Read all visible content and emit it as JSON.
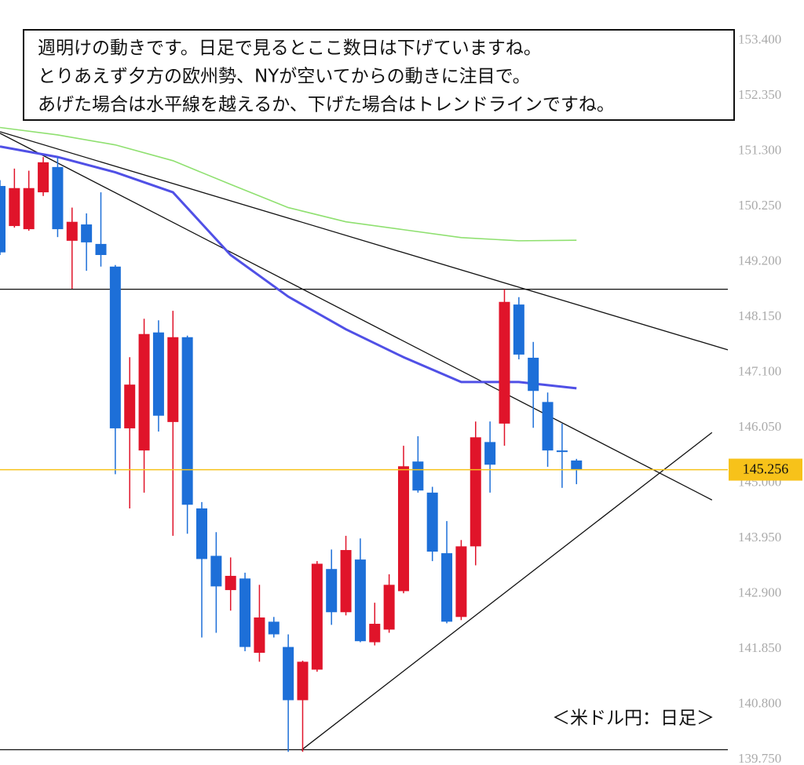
{
  "chart_data": {
    "type": "candlestick",
    "annotation": [
      "週明けの動きです。日足で見るとここ数日は下げていますね。",
      "とりあえず夕方の欧州勢、NYが空いてからの動きに注目で。",
      "あげた場合は水平線を越えるか、下げた場合はトレンドラインですね。"
    ],
    "caption": "＜米ドル円：日足＞",
    "xlim": [
      0,
      50.5
    ],
    "ylim": [
      139.65,
      154.17
    ],
    "yticks": [
      {
        "value": 153.4,
        "label": "153.400"
      },
      {
        "value": 152.35,
        "label": "152.350"
      },
      {
        "value": 151.3,
        "label": "151.300"
      },
      {
        "value": 150.25,
        "label": "150.250"
      },
      {
        "value": 149.2,
        "label": "149.200"
      },
      {
        "value": 148.15,
        "label": "148.150"
      },
      {
        "value": 147.1,
        "label": "147.100"
      },
      {
        "value": 146.05,
        "label": "146.050"
      },
      {
        "value": 145.0,
        "label": "145.000"
      },
      {
        "value": 143.95,
        "label": "143.950"
      },
      {
        "value": 142.9,
        "label": "142.900"
      },
      {
        "value": 141.85,
        "label": "141.850"
      },
      {
        "value": 140.8,
        "label": "140.800"
      },
      {
        "value": 139.75,
        "label": "139.750"
      }
    ],
    "up_color": "#e0142a",
    "down_color": "#1d6fd8",
    "open": [
      150.64,
      149.88,
      149.82,
      150.52,
      151.0,
      149.6,
      149.91,
      149.54,
      149.11,
      146.04,
      145.62,
      147.86,
      146.16,
      147.77,
      144.52,
      143.62,
      142.97,
      143.19,
      141.78,
      142.37,
      141.89,
      140.88,
      141.46,
      143.37,
      142.55,
      143.55,
      141.98,
      142.22,
      142.95,
      145.41,
      144.82,
      143.67,
      142.46,
      143.8,
      145.78,
      146.13,
      148.39,
      147.38,
      146.54,
      145.62,
      145.43
    ],
    "high": [
      150.75,
      150.97,
      150.93,
      151.19,
      151.19,
      150.23,
      150.12,
      150.52,
      149.14,
      147.39,
      148.12,
      148.09,
      148.27,
      147.8,
      144.64,
      144.07,
      143.59,
      143.3,
      143.07,
      142.46,
      142.13,
      141.63,
      143.52,
      143.74,
      144.0,
      143.95,
      142.73,
      143.27,
      145.71,
      145.89,
      144.93,
      144.28,
      143.92,
      146.17,
      146.17,
      148.68,
      148.53,
      147.68,
      146.72,
      146.13,
      145.46
    ],
    "low": [
      149.33,
      149.85,
      149.79,
      150.45,
      149.67,
      148.69,
      149.03,
      149.11,
      145.17,
      144.52,
      144.82,
      145.98,
      144.0,
      144.04,
      142.07,
      142.16,
      142.58,
      141.81,
      141.61,
      142.07,
      139.9,
      139.9,
      141.42,
      142.31,
      142.49,
      141.98,
      141.92,
      142.16,
      142.91,
      144.82,
      143.52,
      142.34,
      142.4,
      143.44,
      144.82,
      145.71,
      147.35,
      146.05,
      145.31,
      144.91,
      144.98
    ],
    "close": [
      149.38,
      150.6,
      150.6,
      151.09,
      149.82,
      149.96,
      149.57,
      149.33,
      146.04,
      146.87,
      147.83,
      146.28,
      147.77,
      144.59,
      143.56,
      143.04,
      143.24,
      141.89,
      142.45,
      142.13,
      140.88,
      141.61,
      143.47,
      142.55,
      143.73,
      142.0,
      142.33,
      143.07,
      145.32,
      144.86,
      143.7,
      142.37,
      143.8,
      145.87,
      145.35,
      148.44,
      147.44,
      146.75,
      145.62,
      145.59,
      145.26
    ],
    "lines": [
      {
        "color": "#5050e6",
        "x": [
          0,
          4,
          8,
          12,
          16,
          20,
          24,
          28,
          32,
          36,
          40
        ],
        "values": [
          151.39,
          151.19,
          150.9,
          150.52,
          149.33,
          148.54,
          147.92,
          147.39,
          146.92,
          146.92,
          146.8
        ]
      },
      {
        "color": "#8fe070",
        "x": [
          0,
          4,
          8,
          12,
          16,
          20,
          24,
          28,
          32,
          36,
          40
        ],
        "values": [
          151.75,
          151.61,
          151.42,
          151.12,
          150.67,
          150.23,
          149.96,
          149.81,
          149.66,
          149.6,
          149.61
        ]
      }
    ],
    "trendlines": [
      {
        "x": [
          0,
          50.5
        ],
        "values": [
          151.67,
          147.53
        ]
      },
      {
        "x": [
          0,
          49.4
        ],
        "values": [
          151.64,
          144.68
        ]
      },
      {
        "x": [
          20.9,
          49.4
        ],
        "values": [
          139.93,
          145.96
        ]
      }
    ],
    "hlines": [
      148.68,
      139.94
    ],
    "last_price": 145.256,
    "last_price_color": "#f7c21a"
  }
}
